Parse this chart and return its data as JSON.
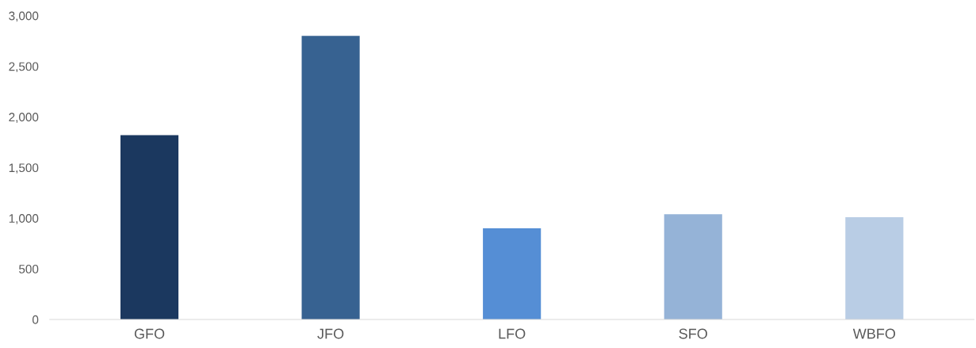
{
  "chart_data": {
    "type": "bar",
    "categories": [
      "GFO",
      "JFO",
      "LFO",
      "SFO",
      "WBFO"
    ],
    "values": [
      1820,
      2800,
      900,
      1040,
      1010
    ],
    "colors": [
      "#1b385f",
      "#376291",
      "#558ed5",
      "#95b3d7",
      "#b9cde5"
    ],
    "ylim": [
      0,
      3000
    ],
    "yticks": [
      {
        "value": 0,
        "label": "0"
      },
      {
        "value": 500,
        "label": "500"
      },
      {
        "value": 1000,
        "label": "1,000"
      },
      {
        "value": 1500,
        "label": "1,500"
      },
      {
        "value": 2000,
        "label": "2,000"
      },
      {
        "value": 2500,
        "label": "2,500"
      },
      {
        "value": 3000,
        "label": "3,000"
      }
    ],
    "grid": false
  }
}
